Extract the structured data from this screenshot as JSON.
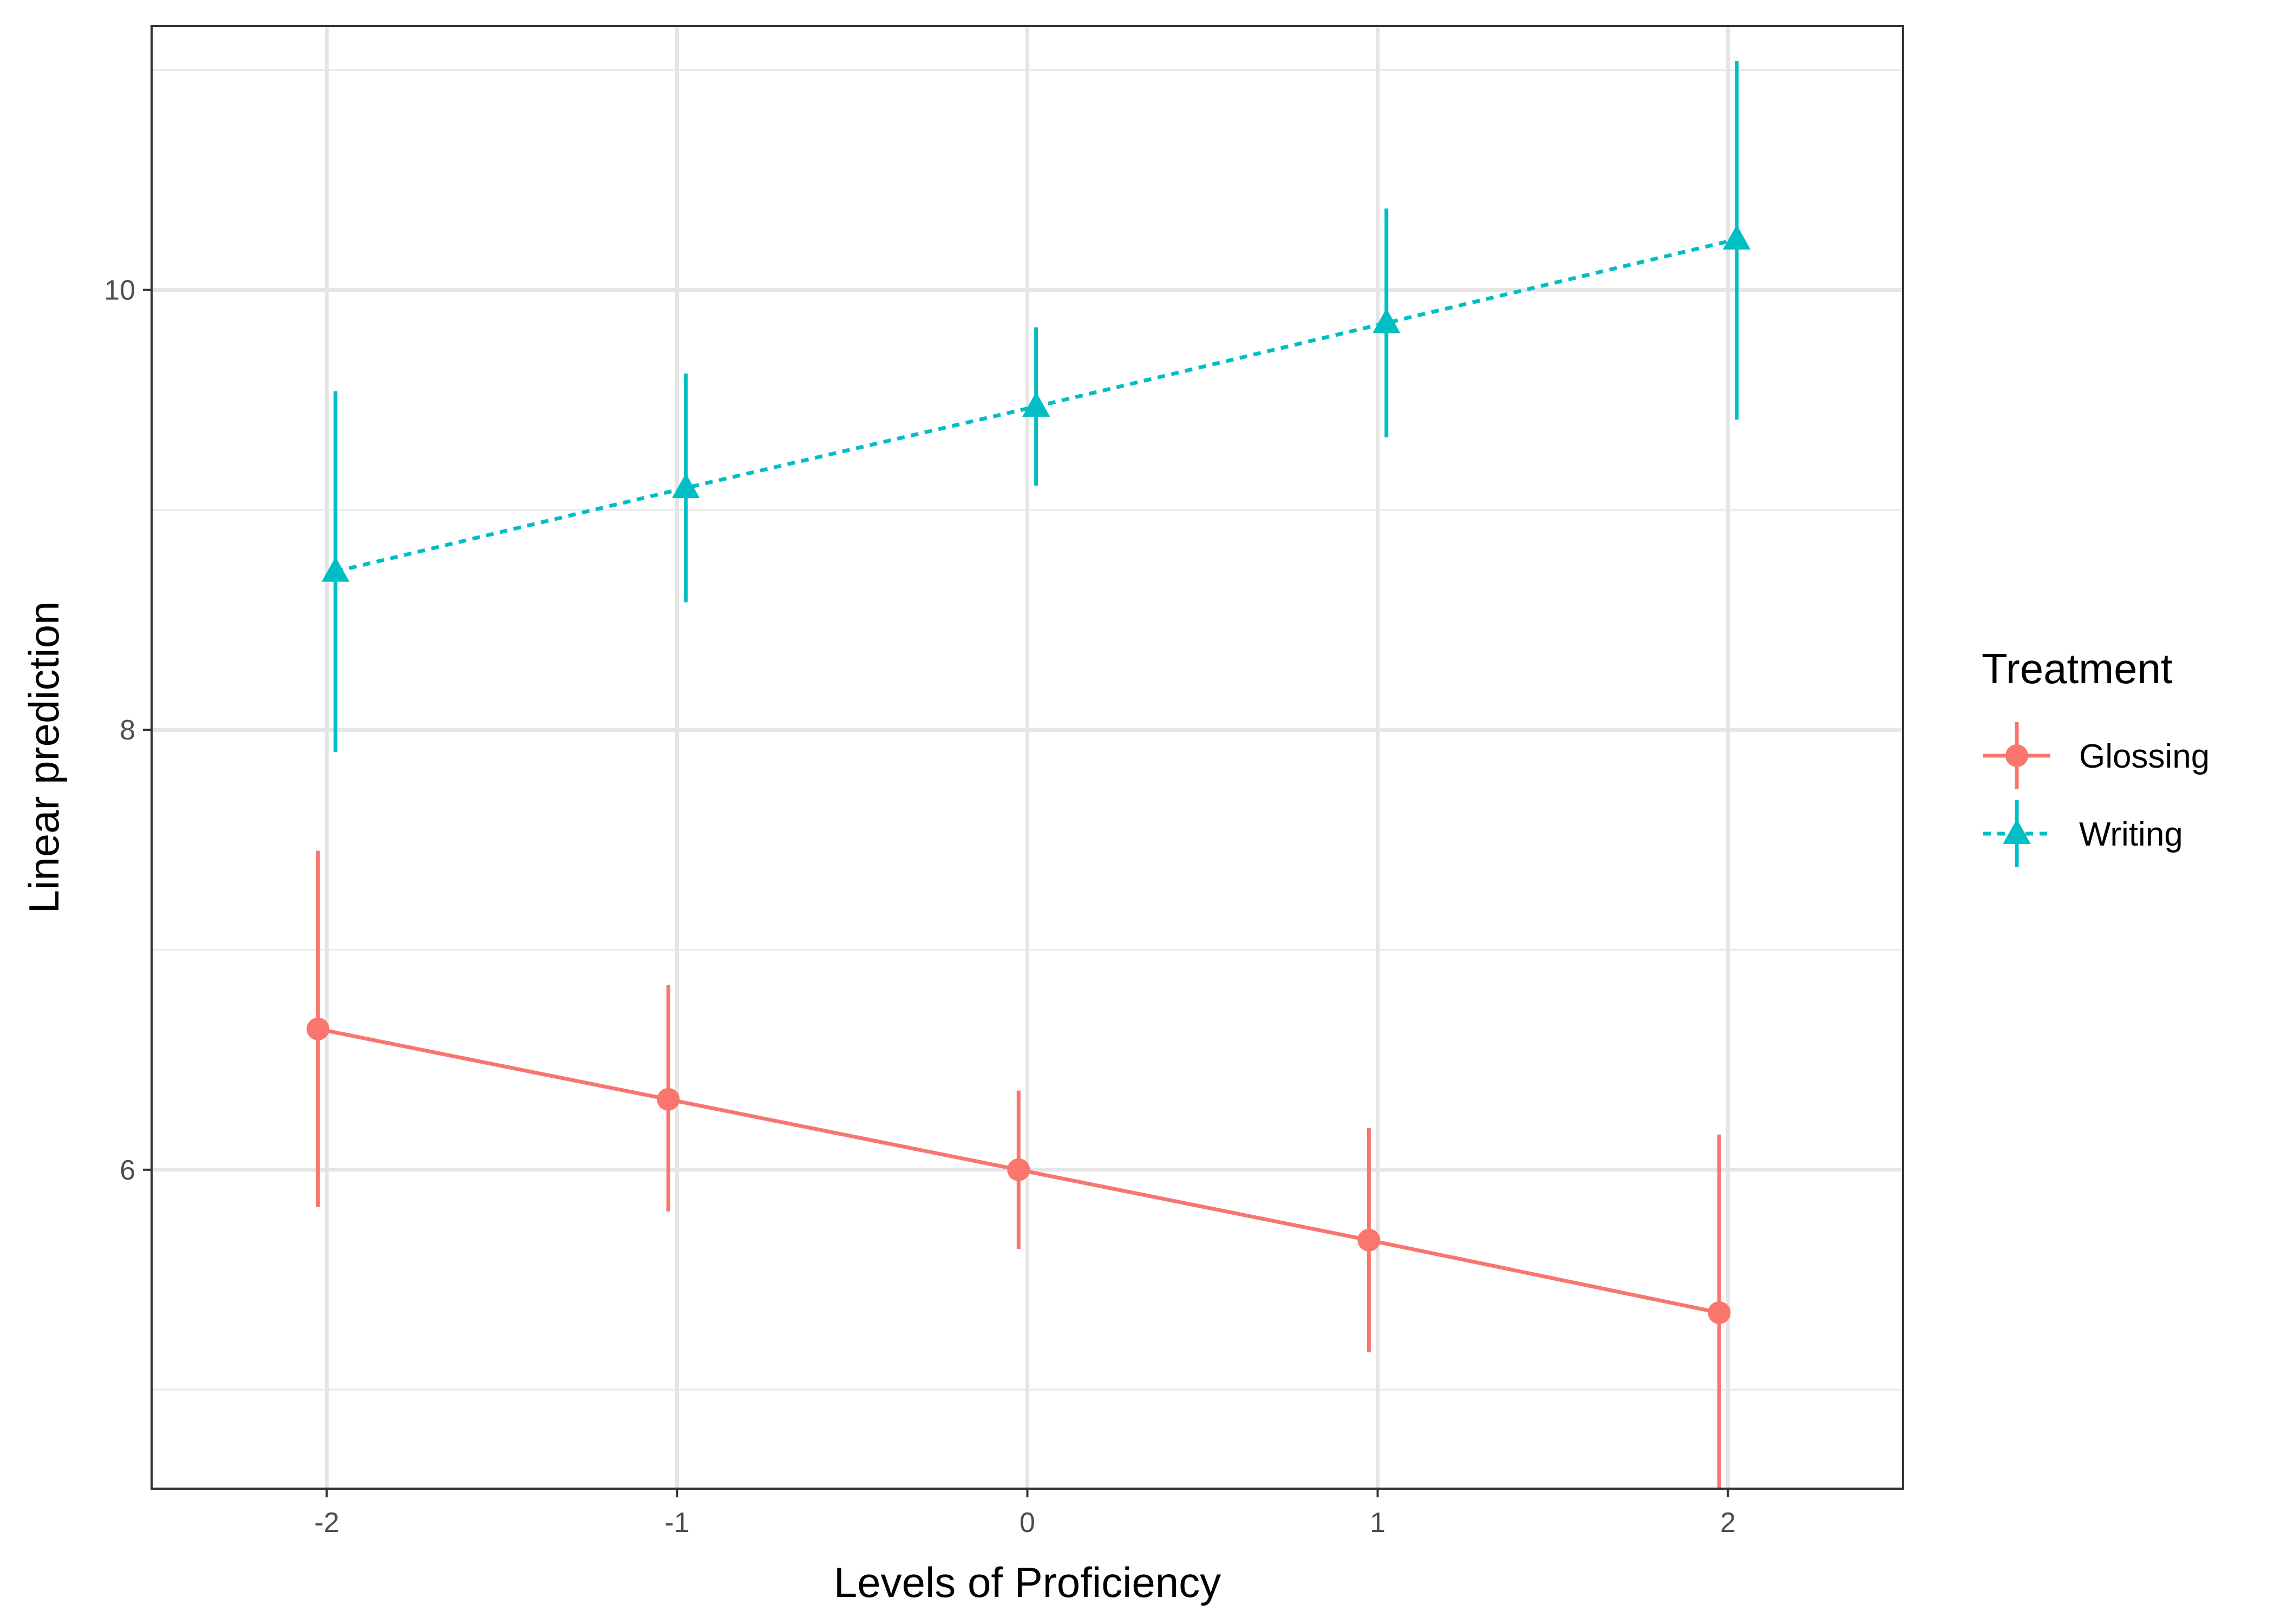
{
  "chart_data": {
    "type": "line",
    "title": "",
    "xlabel": "Levels of Proficiency",
    "ylabel": "Linear prediction",
    "x_ticks": [
      -2,
      -1,
      0,
      1,
      2
    ],
    "x_tick_labels": [
      "-2",
      "-1",
      "0",
      "1",
      "2"
    ],
    "y_ticks": [
      6,
      8,
      10
    ],
    "y_tick_labels": [
      "6",
      "8",
      "10"
    ],
    "xlim": [
      -2.5,
      2.5
    ],
    "ylim": [
      4.55,
      11.2
    ],
    "grid": true,
    "legend": {
      "title": "Treatment",
      "position": "right"
    },
    "series": [
      {
        "name": "Glossing",
        "color": "#F8766D",
        "marker": "circle",
        "line_style": "solid",
        "x": [
          -2,
          -1,
          0,
          1,
          2
        ],
        "y": [
          6.64,
          6.32,
          6.0,
          5.68,
          5.35
        ],
        "lower": [
          5.83,
          5.81,
          5.64,
          5.17,
          4.55
        ],
        "upper": [
          7.45,
          6.84,
          6.36,
          6.19,
          6.16
        ]
      },
      {
        "name": "Writing",
        "color": "#00BFC4",
        "marker": "triangle",
        "line_style": "dotted",
        "x": [
          -2,
          -1,
          0,
          1,
          2
        ],
        "y": [
          8.72,
          9.1,
          9.47,
          9.85,
          10.23
        ],
        "lower": [
          7.9,
          8.58,
          9.11,
          9.33,
          9.41
        ],
        "upper": [
          9.54,
          9.62,
          9.83,
          10.37,
          11.04
        ]
      }
    ]
  }
}
